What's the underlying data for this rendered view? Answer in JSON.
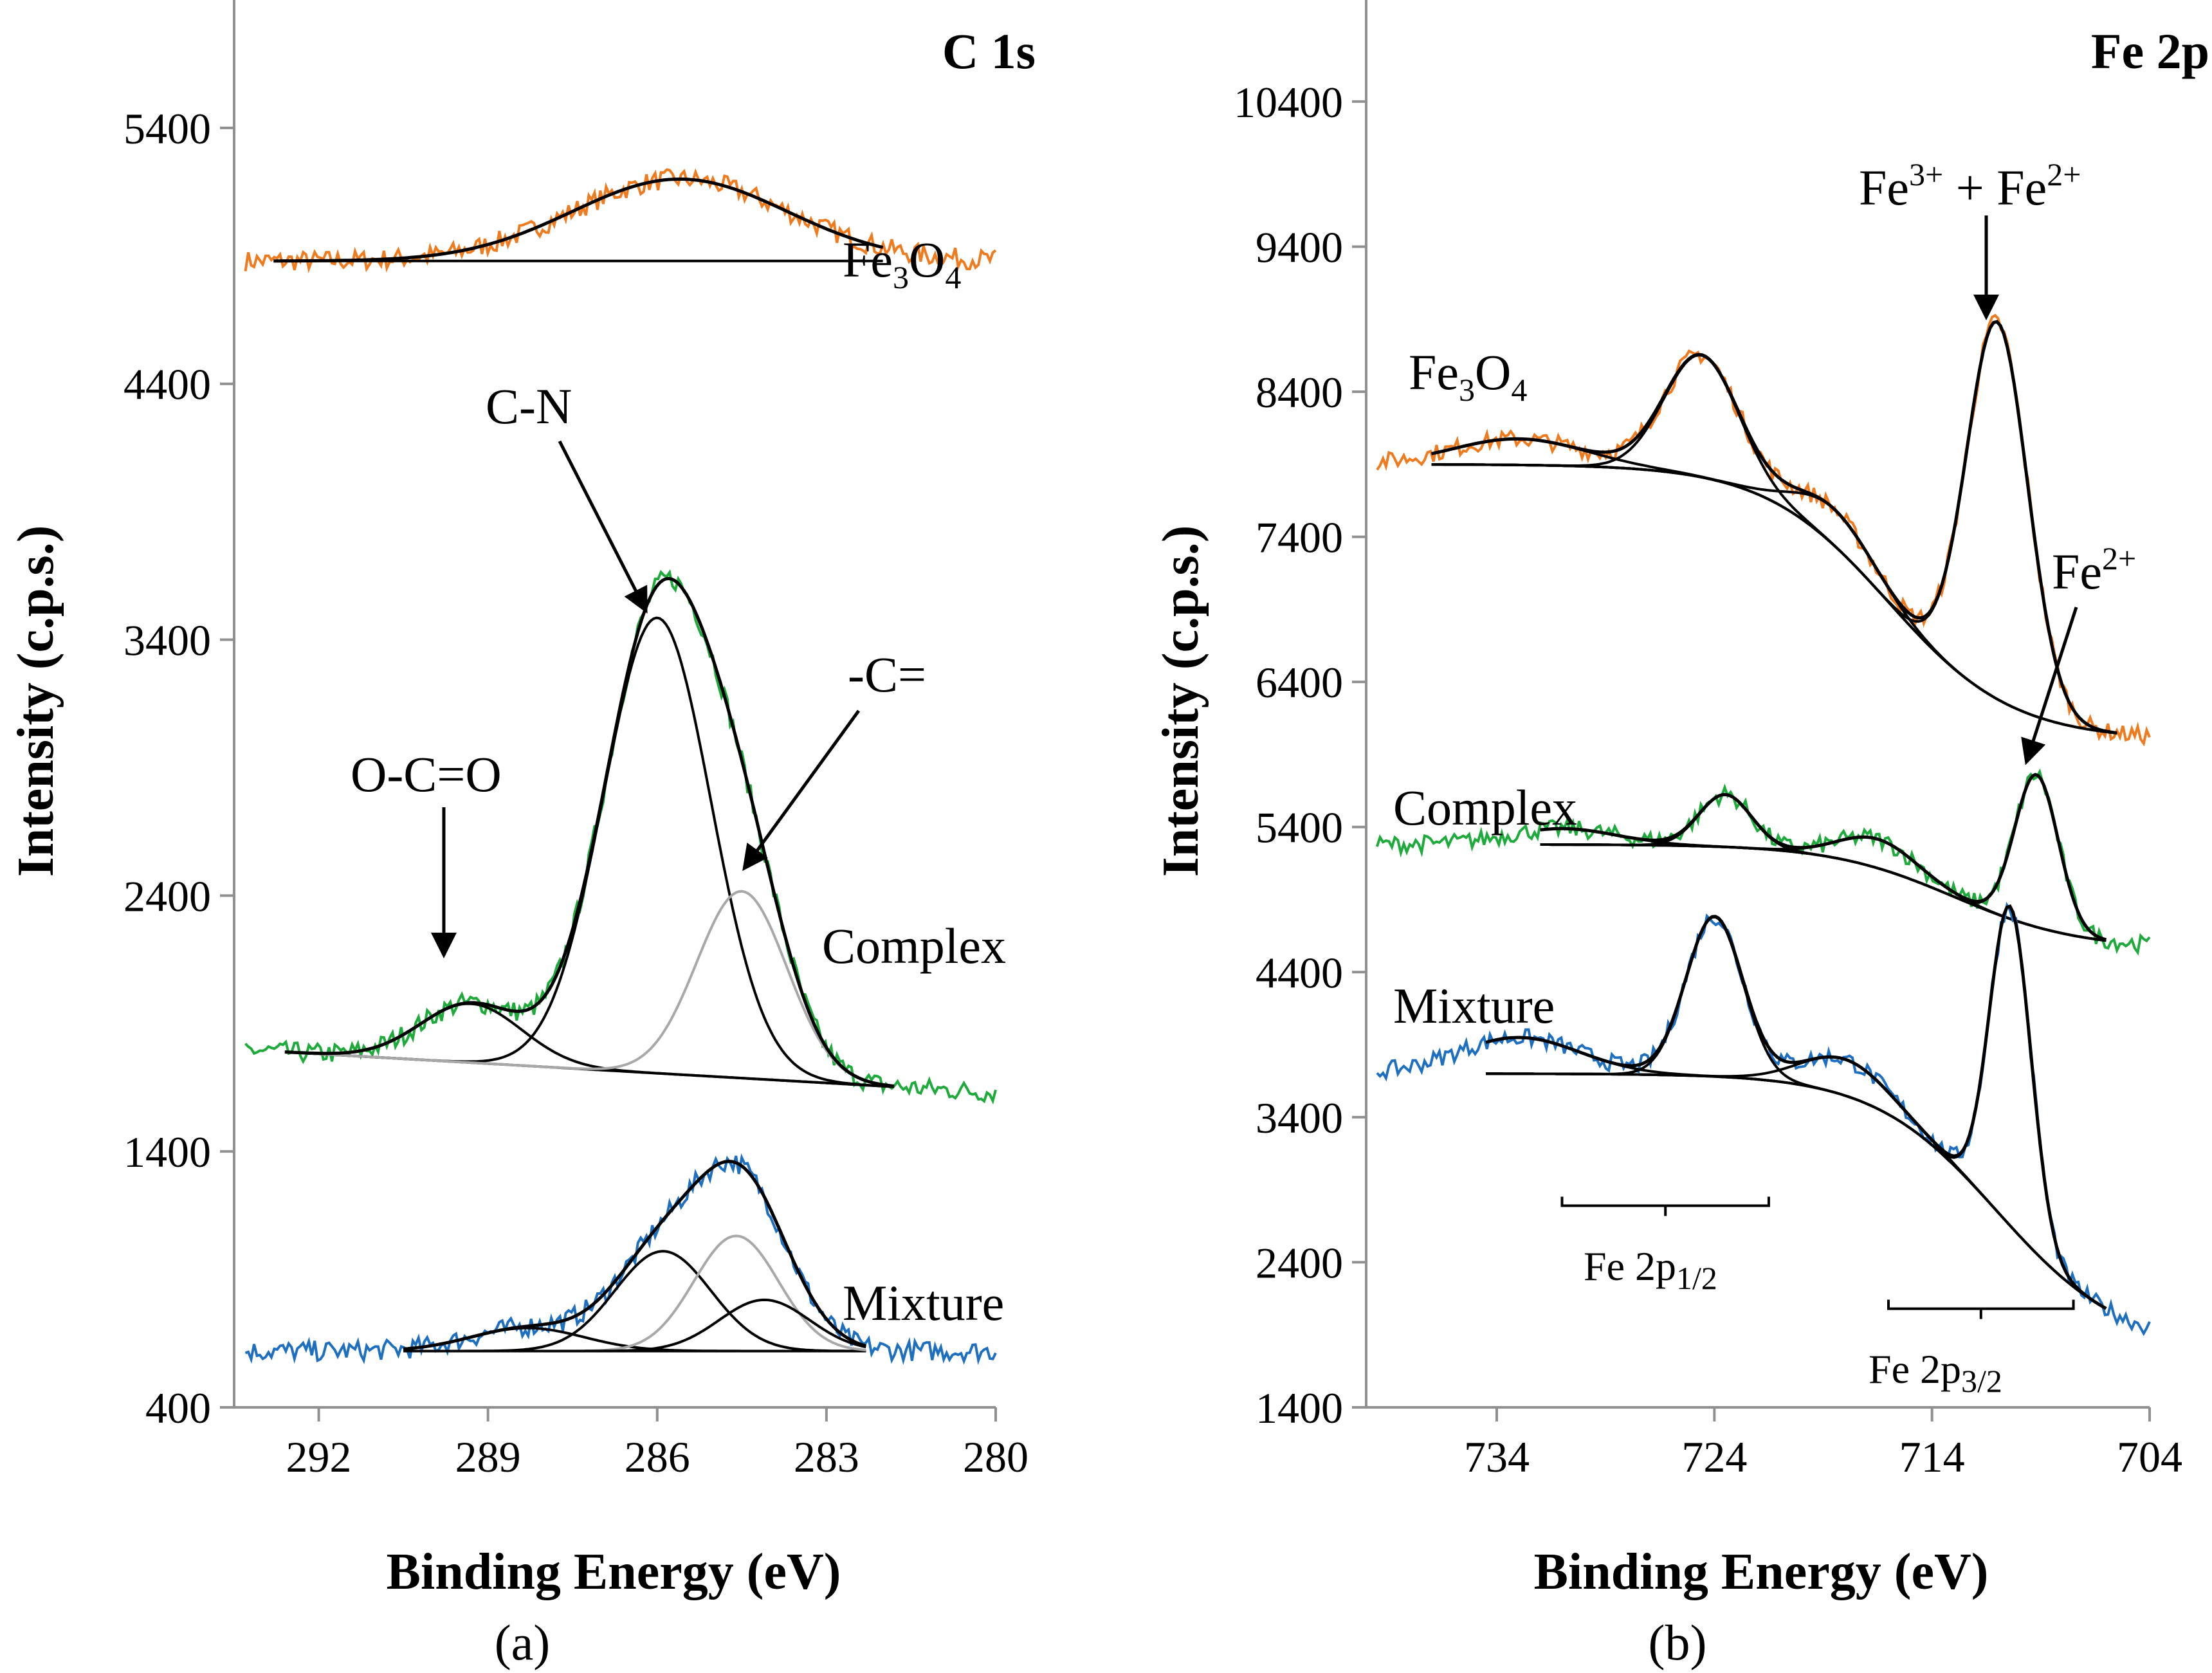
{
  "colors": {
    "fe3o4": "#F07A1E",
    "complex": "#1FAA3C",
    "mixture": "#1F6FC0",
    "fit": "#000000",
    "component_gray": "#A8A8A8"
  },
  "chart_data": [
    {
      "type": "line",
      "panel": "a",
      "title": "C 1s",
      "xlabel": "Binding Energy (eV)",
      "ylabel": "Intensity (c.p.s.)",
      "xlim": [
        293.5,
        280
      ],
      "ylim": [
        400,
        5900
      ],
      "xticks": [
        "292",
        "289",
        "286",
        "283",
        "280"
      ],
      "yticks": [
        "400",
        "1400",
        "2400",
        "3400",
        "4400",
        "5400"
      ],
      "caption": "(a)",
      "series": [
        {
          "name": "Fe3O4",
          "label_main": "Fe",
          "label_sub1": "3",
          "label_mid": "O",
          "label_sub2": "4",
          "color": "fe3o4",
          "x_range": [
            293.3,
            280
          ],
          "baseline": 4880,
          "peaks": [
            {
              "center": 285.6,
              "amp": 320,
              "width": 1.9
            }
          ]
        },
        {
          "name": "Complex",
          "label": "Complex",
          "color": "complex",
          "x_range": [
            293.3,
            280
          ],
          "baseline_start": 1800,
          "baseline_end": 1630,
          "peaks": [
            {
              "center": 289.3,
              "amp": 230,
              "width": 0.9
            },
            {
              "center": 286.0,
              "amp": 1780,
              "width": 0.95
            },
            {
              "center": 284.5,
              "amp": 730,
              "width": 0.8
            }
          ]
        },
        {
          "name": "Mixture",
          "label": "Mixture",
          "color": "mixture",
          "x_range": [
            293.3,
            280
          ],
          "baseline": 620,
          "peaks": [
            {
              "center": 288.3,
              "amp": 90,
              "width": 1.0
            },
            {
              "center": 285.9,
              "amp": 390,
              "width": 0.85
            },
            {
              "center": 284.6,
              "amp": 450,
              "width": 0.75
            },
            {
              "center": 284.1,
              "amp": 200,
              "width": 0.8
            }
          ]
        }
      ],
      "annotations": [
        {
          "text": "C-N",
          "points_to": {
            "x": 285.8,
            "y": 3580
          }
        },
        {
          "text": "-C=",
          "points_to": {
            "x": 284.6,
            "y": 2550
          }
        },
        {
          "text": "O-C=O",
          "points_to": {
            "x": 289.2,
            "y": 2000
          }
        }
      ]
    },
    {
      "type": "line",
      "panel": "b",
      "title": "Fe 2p",
      "xlabel": "Binding Energy (eV)",
      "ylabel": "Intensity (c.p.s.)",
      "xlim": [
        740,
        704
      ],
      "ylim": [
        1400,
        11100
      ],
      "xticks": [
        "734",
        "724",
        "714",
        "704"
      ],
      "yticks": [
        "1400",
        "2400",
        "3400",
        "4400",
        "5400",
        "6400",
        "7400",
        "8400",
        "9400",
        "10400"
      ],
      "caption": "(b)",
      "series": [
        {
          "name": "Fe3O4",
          "label_main": "Fe",
          "label_sub1": "3",
          "label_mid": "O",
          "label_sub2": "4",
          "color": "fe3o4",
          "x_range": [
            739.5,
            704
          ],
          "baseline_high": 7900,
          "baseline_low": 6000,
          "step_center": 716,
          "peaks": [
            {
              "center": 724.6,
              "amp": 840,
              "width": 1.7
            },
            {
              "center": 711.0,
              "amp": 2600,
              "width": 1.4
            },
            {
              "center": 733.0,
              "amp": 180,
              "width": 3.0
            },
            {
              "center": 718.5,
              "amp": 250,
              "width": 1.8
            }
          ]
        },
        {
          "name": "Complex",
          "label": "Complex",
          "color": "complex",
          "x_range": [
            739.5,
            704
          ],
          "baseline_high": 5280,
          "baseline_low": 4560,
          "step_center": 713,
          "peaks": [
            {
              "center": 723.5,
              "amp": 360,
              "width": 1.2
            },
            {
              "center": 709.2,
              "amp": 1050,
              "width": 1.0
            },
            {
              "center": 731.0,
              "amp": 110,
              "width": 2.5
            },
            {
              "center": 716.5,
              "amp": 200,
              "width": 1.8
            }
          ]
        },
        {
          "name": "Mixture",
          "label": "Mixture",
          "color": "mixture",
          "x_range": [
            739.5,
            704
          ],
          "baseline_high": 3700,
          "baseline_low": 1800,
          "step_center": 711,
          "peaks": [
            {
              "center": 724.0,
              "amp": 1100,
              "width": 1.3
            },
            {
              "center": 710.4,
              "amp": 2200,
              "width": 0.95
            },
            {
              "center": 733.0,
              "amp": 250,
              "width": 2.8
            },
            {
              "center": 718.0,
              "amp": 250,
              "width": 2.0
            }
          ]
        }
      ],
      "annotations": [
        {
          "text_main": "Fe",
          "text_sup1": "3+",
          "text_mid": " + Fe",
          "text_sup2": "2+",
          "points_to": {
            "x": 711.0,
            "y": 8800
          }
        },
        {
          "text_main": "Fe",
          "text_sup": "2+",
          "points_to": {
            "x": 709.2,
            "y": 5880
          }
        },
        {
          "text_main": "Fe 2p",
          "text_sub": "1/2",
          "bracket_x": [
            731.0,
            721.5
          ],
          "bracket_y": 2790
        },
        {
          "text_main": "Fe 2p",
          "text_sub": "3/2",
          "bracket_x": [
            716.0,
            707.5
          ],
          "bracket_y": 2080
        }
      ]
    }
  ]
}
